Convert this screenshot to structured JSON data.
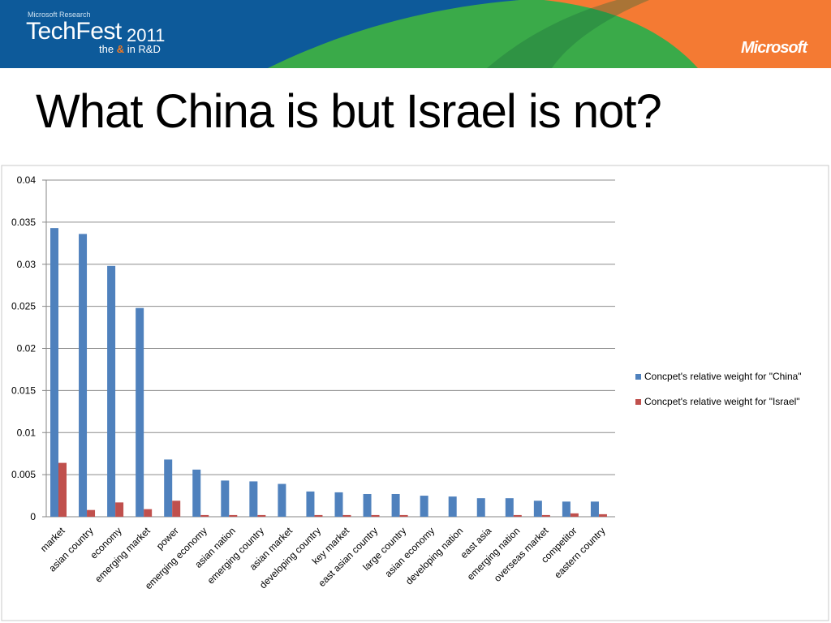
{
  "banner": {
    "research_label": "Microsoft  Research",
    "product": "TechFest",
    "year": "2011",
    "tagline_pre": "the ",
    "tagline_amp": "&",
    "tagline_post": " in R&D",
    "logo": "Microsoft"
  },
  "slide": {
    "title": "What China is but Israel is not?"
  },
  "colors": {
    "china": "#4f81bd",
    "israel": "#c0504d",
    "banner_blue": "#0d5a9a",
    "banner_green": "#3aaa49",
    "banner_orange": "#f47a33"
  },
  "chart_data": {
    "type": "bar",
    "categories": [
      "market",
      "asian country",
      "economy",
      "emerging market",
      "power",
      "emerging economy",
      "asian nation",
      "emerging country",
      "asian market",
      "developing country",
      "key market",
      "east asian country",
      "large country",
      "asian economy",
      "developing nation",
      "east asia",
      "emerging nation",
      "overseas market",
      "competitor",
      "eastern country"
    ],
    "series": [
      {
        "name": "Concpet's relative weight for \"China\"",
        "values": [
          0.0343,
          0.0336,
          0.0298,
          0.0248,
          0.0068,
          0.0056,
          0.0043,
          0.0042,
          0.0039,
          0.003,
          0.0029,
          0.0027,
          0.0027,
          0.0025,
          0.0024,
          0.0022,
          0.0022,
          0.0019,
          0.0018,
          0.0018
        ]
      },
      {
        "name": "Concpet's relative weight for \"Israel\"",
        "values": [
          0.0064,
          0.0008,
          0.0017,
          0.0009,
          0.0019,
          0.0002,
          0.0002,
          0.0002,
          0.0,
          0.0002,
          0.0002,
          0.0002,
          0.0002,
          0.0,
          0.0,
          0.0,
          0.0002,
          0.0002,
          0.0004,
          0.0003
        ]
      }
    ],
    "yticks": [
      "0",
      "0.005",
      "0.01",
      "0.015",
      "0.02",
      "0.025",
      "0.03",
      "0.035",
      "0.04"
    ],
    "ylim": [
      0,
      0.04
    ],
    "grid": true,
    "legend": "right"
  }
}
